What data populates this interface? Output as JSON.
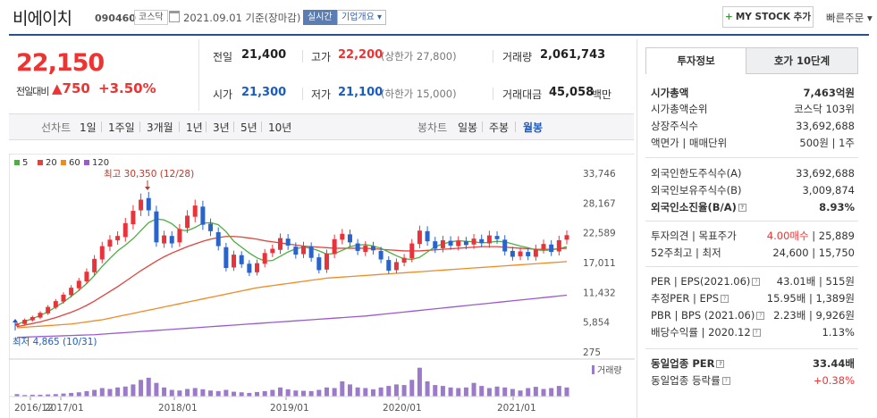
{
  "header": {
    "title": "비에이치",
    "code": "090460",
    "market": "코스닥",
    "date": "2021.09.01 기준(장마감)",
    "realtime": "실시간",
    "company": "기업개요 ▾",
    "my_stock": "MY STOCK 추가",
    "my_stock_plus": "+",
    "quick_order": "빠른주문 ▾"
  },
  "price": {
    "current": "22,150",
    "change_label": "전일대비",
    "change_arrow": "▲",
    "change": "750",
    "change_pct": "+3.50%"
  },
  "quotes": {
    "prev_label": "전일",
    "prev": "21,400",
    "high_label": "고가",
    "high": "22,200",
    "upper_limit": "(상한가 27,800)",
    "volume_label": "거래량",
    "volume": "2,061,743",
    "open_label": "시가",
    "open": "21,300",
    "low_label": "저가",
    "low": "21,100",
    "lower_limit": "(하한가 15,000)",
    "amount_label": "거래대금",
    "amount": "45,058",
    "amount_unit": "백만"
  },
  "chart_tabs": {
    "line_label": "선차트",
    "periods": [
      "1일",
      "1주일",
      "3개월",
      "1년",
      "3년",
      "5년",
      "10년"
    ],
    "candle_label": "봉차트",
    "candle_periods": [
      "일봉",
      "주봉",
      "월봉"
    ],
    "active_candle": "월봉"
  },
  "chart_data": {
    "type": "line",
    "legend": [
      {
        "label": "5",
        "color": "#4caf3f"
      },
      {
        "label": "20",
        "color": "#e0443e"
      },
      {
        "label": "60",
        "color": "#f08a24"
      },
      {
        "label": "120",
        "color": "#9b59d0"
      }
    ],
    "y_ticks": [
      "33,746",
      "28,167",
      "22,589",
      "17,011",
      "11,432",
      "5,854",
      "275"
    ],
    "ylim": [
      275,
      33746
    ],
    "x_ticks": [
      "2016/12",
      "2017/01",
      "2018/01",
      "2019/01",
      "2020/01",
      "2021/01"
    ],
    "annotation_high": "최고 30,350 (12/28)",
    "annotation_low": "최저 4,865 (10/31)",
    "volume_label": "거래량",
    "candles": [
      {
        "o": 5200,
        "c": 5600
      },
      {
        "o": 5500,
        "c": 6300
      },
      {
        "o": 6200,
        "c": 6800
      },
      {
        "o": 6700,
        "c": 7600
      },
      {
        "o": 7500,
        "c": 8700
      },
      {
        "o": 8600,
        "c": 9800
      },
      {
        "o": 9700,
        "c": 11000
      },
      {
        "o": 10900,
        "c": 12300
      },
      {
        "o": 12200,
        "c": 13600
      },
      {
        "o": 13500,
        "c": 15300
      },
      {
        "o": 15200,
        "c": 17700
      },
      {
        "o": 17600,
        "c": 20100
      },
      {
        "o": 20000,
        "c": 21300
      },
      {
        "o": 21200,
        "c": 22000
      },
      {
        "o": 21800,
        "c": 24400
      },
      {
        "o": 24200,
        "c": 26700
      },
      {
        "o": 26800,
        "c": 28800
      },
      {
        "o": 29100,
        "c": 26800
      },
      {
        "o": 26600,
        "c": 20800
      },
      {
        "o": 20600,
        "c": 22100
      },
      {
        "o": 22000,
        "c": 20600
      },
      {
        "o": 20800,
        "c": 23300
      },
      {
        "o": 23500,
        "c": 25800
      },
      {
        "o": 25600,
        "c": 27700
      },
      {
        "o": 27500,
        "c": 24100
      },
      {
        "o": 24300,
        "c": 22900
      },
      {
        "o": 22700,
        "c": 20100
      },
      {
        "o": 19900,
        "c": 16000
      },
      {
        "o": 16100,
        "c": 18500
      },
      {
        "o": 18400,
        "c": 16700
      },
      {
        "o": 16800,
        "c": 15100
      },
      {
        "o": 15200,
        "c": 16900
      },
      {
        "o": 16800,
        "c": 18800
      },
      {
        "o": 18800,
        "c": 19600
      },
      {
        "o": 19400,
        "c": 21600
      },
      {
        "o": 21500,
        "c": 20200
      },
      {
        "o": 20000,
        "c": 18500
      },
      {
        "o": 18600,
        "c": 20100
      },
      {
        "o": 20000,
        "c": 17900
      },
      {
        "o": 18000,
        "c": 15600
      },
      {
        "o": 15700,
        "c": 18700
      },
      {
        "o": 18600,
        "c": 21400
      },
      {
        "o": 21300,
        "c": 22400
      },
      {
        "o": 22300,
        "c": 20800
      },
      {
        "o": 20600,
        "c": 19200
      },
      {
        "o": 19000,
        "c": 20200
      },
      {
        "o": 20100,
        "c": 19300
      },
      {
        "o": 19200,
        "c": 17600
      },
      {
        "o": 17500,
        "c": 15500
      },
      {
        "o": 15600,
        "c": 17100
      },
      {
        "o": 17000,
        "c": 17900
      },
      {
        "o": 17800,
        "c": 20600
      },
      {
        "o": 20500,
        "c": 23000
      },
      {
        "o": 22900,
        "c": 21000
      },
      {
        "o": 21000,
        "c": 19600
      },
      {
        "o": 19700,
        "c": 21200
      },
      {
        "o": 21100,
        "c": 20200
      },
      {
        "o": 20100,
        "c": 21100
      },
      {
        "o": 21000,
        "c": 20300
      },
      {
        "o": 20400,
        "c": 21500
      },
      {
        "o": 21400,
        "c": 20700
      },
      {
        "o": 20600,
        "c": 22100
      },
      {
        "o": 22000,
        "c": 21400
      },
      {
        "o": 21300,
        "c": 19100
      },
      {
        "o": 19200,
        "c": 18100
      },
      {
        "o": 18200,
        "c": 19100
      },
      {
        "o": 19000,
        "c": 18200
      },
      {
        "o": 18100,
        "c": 19600
      },
      {
        "o": 19500,
        "c": 20500
      },
      {
        "o": 20400,
        "c": 19000
      },
      {
        "o": 19100,
        "c": 21200
      },
      {
        "o": 21300,
        "c": 22150
      }
    ],
    "ma5": [
      5400,
      6000,
      6500,
      7100,
      7800,
      8700,
      9600,
      10700,
      11800,
      13100,
      14600,
      16300,
      17800,
      19200,
      20300,
      21500,
      23000,
      24500,
      25200,
      25000,
      24300,
      23100,
      23000,
      23600,
      24400,
      24500,
      24100,
      22800,
      21000,
      19900,
      18800,
      17900,
      17300,
      17400,
      18200,
      19000,
      19600,
      19900,
      19700,
      19200,
      18600,
      18700,
      19300,
      20000,
      20300,
      20400,
      20100,
      19700,
      19000,
      18300,
      17700,
      17600,
      18000,
      19000,
      20000,
      20500,
      20900,
      21100,
      21000,
      20900,
      20700,
      20800,
      21000,
      20900,
      20500,
      20100,
      19800,
      19400,
      19300,
      19400,
      19600,
      20000
    ],
    "ma20": [
      5000,
      5300,
      5600,
      5900,
      6300,
      6700,
      7200,
      7700,
      8300,
      9000,
      9800,
      10700,
      11600,
      12500,
      13500,
      14500,
      15500,
      16400,
      17300,
      18100,
      18800,
      19400,
      20000,
      20500,
      21000,
      21400,
      21700,
      21900,
      21900,
      21800,
      21600,
      21400,
      21100,
      20900,
      20700,
      20500,
      20300,
      20100,
      20000,
      19900,
      19800,
      19700,
      19700,
      19700,
      19700,
      19700,
      19600,
      19500,
      19400,
      19300,
      19200,
      19200,
      19200,
      19300,
      19400,
      19500,
      19600,
      19700,
      19800,
      19900,
      20000,
      20000,
      20000,
      19900,
      19800,
      19700,
      19600,
      19500,
      19500,
      19500,
      19600,
      19700
    ],
    "ma60": [
      4800,
      4900,
      5000,
      5100,
      5200,
      5300,
      5400,
      5500,
      5700,
      5900,
      6100,
      6300,
      6600,
      6900,
      7200,
      7500,
      7800,
      8100,
      8400,
      8700,
      9000,
      9300,
      9600,
      9900,
      10200,
      10500,
      10800,
      11100,
      11400,
      11700,
      12000,
      12300,
      12500,
      12700,
      12900,
      13100,
      13300,
      13500,
      13700,
      13900,
      14100,
      14200,
      14300,
      14400,
      14500,
      14600,
      14700,
      14800,
      14900,
      15000,
      15100,
      15200,
      15300,
      15400,
      15500,
      15600,
      15700,
      15800,
      15900,
      16000,
      16100,
      16200,
      16300,
      16400,
      16500,
      16600,
      16700,
      16800,
      16900,
      17000,
      17100,
      17200
    ],
    "ma120": [
      3000,
      3050,
      3100,
      3150,
      3200,
      3250,
      3300,
      3350,
      3400,
      3450,
      3500,
      3600,
      3700,
      3800,
      3900,
      4000,
      4100,
      4200,
      4300,
      4400,
      4500,
      4600,
      4700,
      4800,
      4900,
      5000,
      5100,
      5200,
      5300,
      5400,
      5500,
      5600,
      5700,
      5800,
      5900,
      6000,
      6100,
      6200,
      6300,
      6400,
      6500,
      6600,
      6700,
      6800,
      6900,
      7000,
      7150,
      7300,
      7450,
      7600,
      7750,
      7900,
      8050,
      8200,
      8350,
      8500,
      8650,
      8800,
      8950,
      9100,
      9250,
      9400,
      9550,
      9700,
      9850,
      10000,
      10150,
      10300,
      10450,
      10600,
      10750,
      10900
    ],
    "volumes": [
      0.08,
      0.05,
      0.06,
      0.06,
      0.07,
      0.08,
      0.1,
      0.12,
      0.14,
      0.18,
      0.22,
      0.28,
      0.25,
      0.3,
      0.33,
      0.4,
      0.55,
      0.62,
      0.45,
      0.3,
      0.22,
      0.2,
      0.25,
      0.28,
      0.24,
      0.2,
      0.18,
      0.22,
      0.16,
      0.14,
      0.12,
      0.15,
      0.18,
      0.22,
      0.3,
      0.24,
      0.2,
      0.19,
      0.18,
      0.22,
      0.3,
      0.28,
      0.5,
      0.4,
      0.3,
      0.28,
      0.24,
      0.3,
      0.35,
      0.4,
      0.38,
      0.55,
      0.95,
      0.5,
      0.38,
      0.35,
      0.3,
      0.28,
      0.3,
      0.45,
      0.35,
      0.28,
      0.33,
      0.3,
      0.25,
      0.2,
      0.28,
      0.32,
      0.25,
      0.28,
      0.35,
      0.3
    ]
  },
  "side": {
    "tab_active": "투자정보",
    "tab_other": "호가 10단계",
    "rows": [
      {
        "l": "시가총액",
        "r": "7,463억원",
        "bold": true
      },
      {
        "l": "시가총액순위",
        "r": "코스닥 103위"
      },
      {
        "l": "상장주식수",
        "r": "33,692,688"
      },
      {
        "l": "액면가 | 매매단위",
        "r": "500원 | 1주"
      },
      {
        "l": "외국인한도주식수(A)",
        "r": "33,692,688"
      },
      {
        "l": "외국인보유주식수(B)",
        "r": "3,009,874"
      },
      {
        "l": "외국인소진율(B/A)",
        "r": "8.93%",
        "bold": true
      },
      {
        "l": "투자의견 | 목표주가",
        "r1": "4.00매수",
        "r2": " | 25,889"
      },
      {
        "l": "52주최고 | 최저",
        "r": "24,600 | 15,750"
      },
      {
        "l": "PER | EPS(2021.06)",
        "r": "43.01배 | 515원"
      },
      {
        "l": "추정PER | EPS",
        "r": "15.95배 | 1,389원"
      },
      {
        "l": "PBR | BPS (2021.06)",
        "r": "2.23배 | 9,926원"
      },
      {
        "l": "배당수익률 | 2020.12",
        "r": "1.13%"
      },
      {
        "l": "동일업종 PER",
        "r": "33.44배",
        "bold": true
      },
      {
        "l": "동일업종 등락률",
        "r": "+0.38%"
      }
    ]
  }
}
